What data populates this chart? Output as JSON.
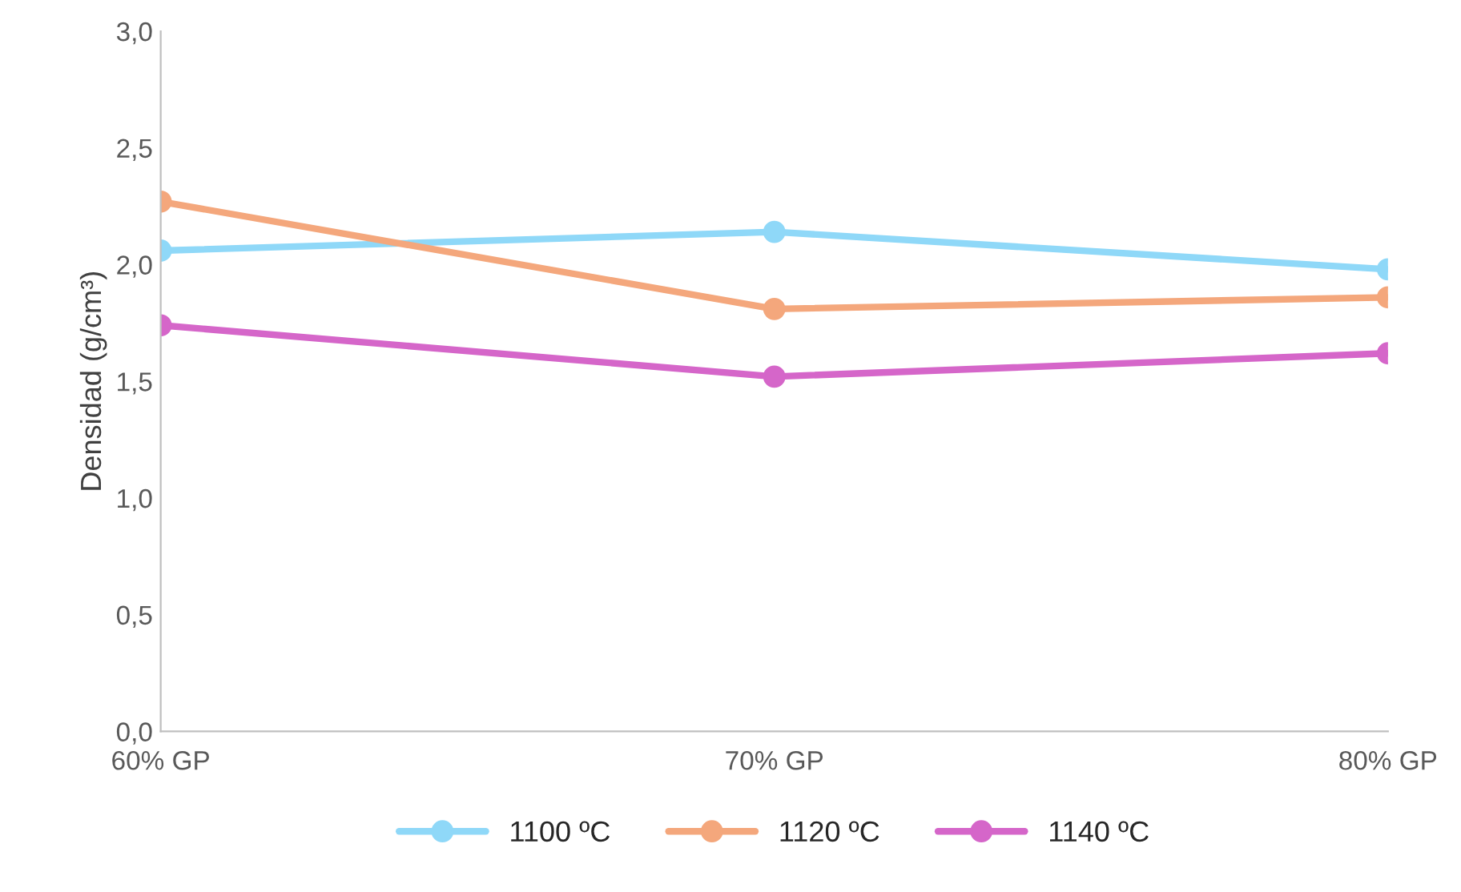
{
  "chart_data": {
    "type": "line",
    "ylabel": "Densidad (g/cm³)",
    "categories": [
      "60% GP",
      "70% GP",
      "80% GP"
    ],
    "series": [
      {
        "name": "1100 ºC",
        "color": "#8fd8f8",
        "values": [
          2.06,
          2.14,
          1.98
        ]
      },
      {
        "name": "1120 ºC",
        "color": "#f4a77c",
        "values": [
          2.27,
          1.81,
          1.86
        ]
      },
      {
        "name": "1140 ºC",
        "color": "#d566c9",
        "values": [
          1.74,
          1.52,
          1.62
        ]
      }
    ],
    "ylim": [
      0,
      3
    ],
    "yticks": [
      {
        "value": 0,
        "label": "0,0"
      },
      {
        "value": 0.5,
        "label": "0,5"
      },
      {
        "value": 1,
        "label": "1,0"
      },
      {
        "value": 1.5,
        "label": "1,5"
      },
      {
        "value": 2,
        "label": "2,0"
      },
      {
        "value": 2.5,
        "label": "2,5"
      },
      {
        "value": 3,
        "label": "3,0"
      }
    ],
    "grid": false,
    "legend": "bottom",
    "marker": "circle",
    "line_style": "solid"
  }
}
